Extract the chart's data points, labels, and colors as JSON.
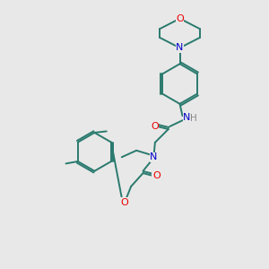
{
  "bg_color": "#e8e8e8",
  "bond_color": "#2a7a6e",
  "N_color": "#0000cc",
  "O_color": "#ee0000",
  "H_color": "#888888",
  "bond_lw": 1.4,
  "fs": 7.5,
  "xlim": [
    0,
    10
  ],
  "ylim": [
    0,
    10
  ]
}
